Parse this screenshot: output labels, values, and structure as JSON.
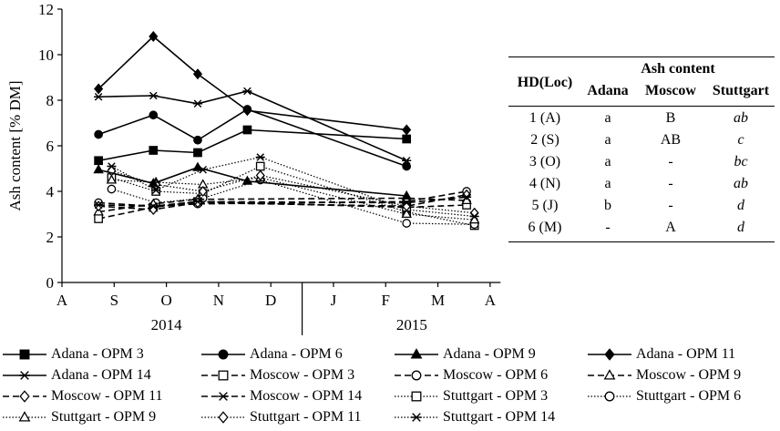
{
  "chart_data": {
    "type": "line",
    "ylabel": "Ash content [% DM]",
    "ylim": [
      0,
      12
    ],
    "yticks": [
      0,
      2,
      4,
      6,
      8,
      10,
      12
    ],
    "xlim": [
      0,
      8.4
    ],
    "month_ticks": [
      {
        "label": "A",
        "x": 0
      },
      {
        "label": "S",
        "x": 1
      },
      {
        "label": "O",
        "x": 2
      },
      {
        "label": "N",
        "x": 3
      },
      {
        "label": "D",
        "x": 4
      },
      {
        "label": "J",
        "x": 5.2
      },
      {
        "label": "F",
        "x": 6.2
      },
      {
        "label": "M",
        "x": 7.2
      },
      {
        "label": "A",
        "x": 8.2
      }
    ],
    "year_labels": [
      {
        "label": "2014",
        "x": 2
      },
      {
        "label": "2015",
        "x": 6.7
      }
    ],
    "year_divider_x": 4.6,
    "series": [
      {
        "name": "Adana - OPM 3",
        "group": "Adana",
        "marker": "square-filled",
        "x": [
          0.7,
          1.75,
          2.6,
          3.55,
          6.6
        ],
        "y": [
          5.35,
          5.8,
          5.7,
          6.7,
          6.3
        ]
      },
      {
        "name": "Adana - OPM 6",
        "group": "Adana",
        "marker": "circle-filled",
        "x": [
          0.7,
          1.75,
          2.6,
          3.55,
          6.6
        ],
        "y": [
          6.5,
          7.35,
          6.25,
          7.6,
          5.1
        ]
      },
      {
        "name": "Adana - OPM 9",
        "group": "Adana",
        "marker": "triangle-filled",
        "x": [
          0.7,
          1.75,
          2.6,
          3.55,
          6.6
        ],
        "y": [
          4.95,
          4.35,
          5.05,
          4.45,
          3.8
        ]
      },
      {
        "name": "Adana - OPM 11",
        "group": "Adana",
        "marker": "diamond-filled",
        "x": [
          0.7,
          1.75,
          2.6,
          3.55,
          6.6
        ],
        "y": [
          8.5,
          10.8,
          9.15,
          7.55,
          6.7
        ]
      },
      {
        "name": "Adana - OPM 14",
        "group": "Adana",
        "marker": "star",
        "x": [
          0.7,
          1.75,
          2.6,
          3.55,
          6.6
        ],
        "y": [
          8.15,
          8.2,
          7.85,
          8.4,
          5.35
        ]
      },
      {
        "name": "Moscow - OPM 3",
        "group": "Moscow",
        "marker": "square-open",
        "x": [
          0.7,
          1.75,
          2.6,
          6.6,
          7.75
        ],
        "y": [
          2.8,
          3.3,
          3.55,
          3.3,
          3.4
        ]
      },
      {
        "name": "Moscow - OPM 6",
        "group": "Moscow",
        "marker": "circle-open",
        "x": [
          0.7,
          1.75,
          2.6,
          6.6,
          7.75
        ],
        "y": [
          3.5,
          3.35,
          3.45,
          3.55,
          4.0
        ]
      },
      {
        "name": "Moscow - OPM 9",
        "group": "Moscow",
        "marker": "triangle-open",
        "x": [
          0.7,
          1.75,
          2.6,
          6.6,
          7.75
        ],
        "y": [
          3.1,
          3.45,
          3.65,
          3.7,
          3.6
        ]
      },
      {
        "name": "Moscow - OPM 11",
        "group": "Moscow",
        "marker": "diamond-open",
        "x": [
          0.7,
          1.75,
          2.6,
          6.6,
          7.75
        ],
        "y": [
          3.35,
          3.2,
          3.5,
          3.35,
          3.85
        ]
      },
      {
        "name": "Moscow - OPM 14",
        "group": "Moscow",
        "marker": "star",
        "x": [
          0.7,
          1.75,
          2.6,
          6.6,
          7.75
        ],
        "y": [
          3.4,
          3.35,
          3.55,
          3.5,
          3.75
        ]
      },
      {
        "name": "Stuttgart - OPM 3",
        "group": "Stuttgart",
        "marker": "square-open",
        "x": [
          0.95,
          1.8,
          2.7,
          3.8,
          6.6,
          7.9
        ],
        "y": [
          4.6,
          4.0,
          3.9,
          5.1,
          3.1,
          2.5
        ]
      },
      {
        "name": "Stuttgart - OPM 6",
        "group": "Stuttgart",
        "marker": "circle-open",
        "x": [
          0.95,
          1.8,
          2.7,
          3.8,
          6.6,
          7.9
        ],
        "y": [
          4.1,
          3.5,
          3.7,
          4.5,
          2.6,
          2.55
        ]
      },
      {
        "name": "Stuttgart - OPM 9",
        "group": "Stuttgart",
        "marker": "triangle-open",
        "x": [
          0.95,
          1.8,
          2.7,
          3.8,
          6.6,
          7.9
        ],
        "y": [
          4.5,
          4.4,
          4.3,
          4.6,
          3.0,
          2.75
        ]
      },
      {
        "name": "Stuttgart - OPM 11",
        "group": "Stuttgart",
        "marker": "diamond-open",
        "x": [
          0.95,
          1.8,
          2.7,
          3.8,
          6.6,
          7.9
        ],
        "y": [
          4.9,
          4.3,
          4.0,
          4.7,
          3.35,
          3.05
        ]
      },
      {
        "name": "Stuttgart - OPM 14",
        "group": "Stuttgart",
        "marker": "star",
        "x": [
          0.95,
          1.8,
          2.7,
          3.8,
          6.6,
          7.9
        ],
        "y": [
          5.1,
          4.05,
          4.95,
          5.5,
          3.2,
          2.9
        ]
      }
    ]
  },
  "table": {
    "col_header": "HD(Loc)",
    "group_header": "Ash content",
    "locations": [
      "Adana",
      "Moscow",
      "Stuttgart"
    ],
    "rows": [
      {
        "hd": "1 (A)",
        "adana": "a",
        "moscow": "B",
        "stuttgart": "ab"
      },
      {
        "hd": "2 (S)",
        "adana": "a",
        "moscow": "AB",
        "stuttgart": "c"
      },
      {
        "hd": "3 (O)",
        "adana": "a",
        "moscow": "-",
        "stuttgart": "bc"
      },
      {
        "hd": "4 (N)",
        "adana": "a",
        "moscow": "-",
        "stuttgart": "ab"
      },
      {
        "hd": "5 (J)",
        "adana": "b",
        "moscow": "-",
        "stuttgart": "d"
      },
      {
        "hd": "6 (M)",
        "adana": "-",
        "moscow": "A",
        "stuttgart": "d"
      }
    ]
  }
}
